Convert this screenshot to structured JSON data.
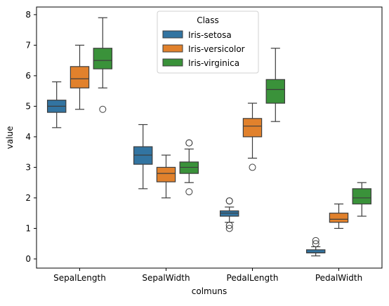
{
  "chart_data": {
    "type": "box",
    "title": "",
    "xlabel": "colmuns",
    "ylabel": "value",
    "categories": [
      "SepalLength",
      "SepalWidth",
      "PedalLength",
      "PedalWidth"
    ],
    "ylim": [
      -0.3,
      8.25
    ],
    "yticks": [
      0,
      1,
      2,
      3,
      4,
      5,
      6,
      7,
      8
    ],
    "grid": false,
    "legend": {
      "title": "Class",
      "placement": "top-center"
    },
    "series": [
      {
        "name": "Iris-setosa",
        "color": "#3274a1",
        "boxes": [
          {
            "whisker_low": 4.3,
            "q1": 4.8,
            "median": 5.0,
            "q3": 5.2,
            "whisker_high": 5.8,
            "outliers": []
          },
          {
            "whisker_low": 2.3,
            "q1": 3.1,
            "median": 3.4,
            "q3": 3.675,
            "whisker_high": 4.4,
            "outliers": []
          },
          {
            "whisker_low": 1.2,
            "q1": 1.4,
            "median": 1.5,
            "q3": 1.575,
            "whisker_high": 1.7,
            "outliers": [
              1.0,
              1.1,
              1.9,
              1.9
            ]
          },
          {
            "whisker_low": 0.1,
            "q1": 0.2,
            "median": 0.2,
            "q3": 0.3,
            "whisker_high": 0.4,
            "outliers": [
              0.5,
              0.6
            ]
          }
        ]
      },
      {
        "name": "Iris-versicolor",
        "color": "#e1812c",
        "boxes": [
          {
            "whisker_low": 4.9,
            "q1": 5.6,
            "median": 5.9,
            "q3": 6.3,
            "whisker_high": 7.0,
            "outliers": []
          },
          {
            "whisker_low": 2.0,
            "q1": 2.525,
            "median": 2.8,
            "q3": 3.0,
            "whisker_high": 3.4,
            "outliers": []
          },
          {
            "whisker_low": 3.3,
            "q1": 4.0,
            "median": 4.35,
            "q3": 4.6,
            "whisker_high": 5.1,
            "outliers": [
              3.0
            ]
          },
          {
            "whisker_low": 1.0,
            "q1": 1.2,
            "median": 1.3,
            "q3": 1.5,
            "whisker_high": 1.8,
            "outliers": []
          }
        ]
      },
      {
        "name": "Iris-virginica",
        "color": "#3a923a",
        "boxes": [
          {
            "whisker_low": 5.6,
            "q1": 6.225,
            "median": 6.5,
            "q3": 6.9,
            "whisker_high": 7.9,
            "outliers": [
              4.9
            ]
          },
          {
            "whisker_low": 2.5,
            "q1": 2.8,
            "median": 3.0,
            "q3": 3.175,
            "whisker_high": 3.6,
            "outliers": [
              2.2,
              3.8,
              3.8
            ]
          },
          {
            "whisker_low": 4.5,
            "q1": 5.1,
            "median": 5.55,
            "q3": 5.875,
            "whisker_high": 6.9,
            "outliers": []
          },
          {
            "whisker_low": 1.4,
            "q1": 1.8,
            "median": 2.0,
            "q3": 2.3,
            "whisker_high": 2.5,
            "outliers": []
          }
        ]
      }
    ]
  }
}
